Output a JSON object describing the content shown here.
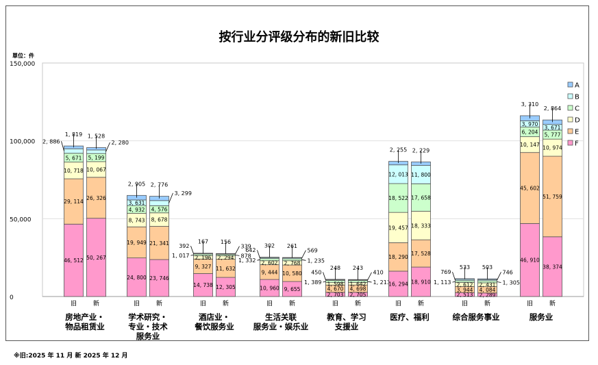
{
  "chart_data": {
    "type": "bar",
    "stacked": true,
    "title": "按行业分评级分布的新旧比较",
    "unit_label": "單位：件",
    "ylabel": "",
    "xlabel": "",
    "ylim": [
      0,
      150000
    ],
    "yticks": [
      "0",
      "50,000",
      "100,000",
      "150,000"
    ],
    "ytick_values": [
      0,
      50000,
      100000,
      150000
    ],
    "grid": true,
    "legend_position": "right",
    "bar_labels": [
      "旧",
      "新"
    ],
    "series_order_bottom_to_top": [
      "F",
      "E",
      "D",
      "C",
      "B",
      "A"
    ],
    "legend": [
      "A",
      "B",
      "C",
      "D",
      "E",
      "F"
    ],
    "colors": {
      "A": "#99CCFF",
      "B": "#CCFFFF",
      "C": "#CCFFCC",
      "D": "#FFFFCC",
      "E": "#FFCC99",
      "F": "#FF99CC"
    },
    "categories": [
      {
        "name": "房地产业・\n物品租赁业",
        "old": {
          "F": 46512,
          "E": 29114,
          "D": 10718,
          "C": 5671,
          "B": 2886,
          "A": 1819
        },
        "new": {
          "F": 50267,
          "E": 26326,
          "D": 10067,
          "C": 5199,
          "B": 2280,
          "A": 1528
        }
      },
      {
        "name": "学术研究・\n专业・技术\n服务业",
        "old": {
          "F": 24800,
          "E": 19949,
          "D": 8743,
          "C": 4932,
          "B": 3631,
          "A": 2905
        },
        "new": {
          "F": 23746,
          "E": 21341,
          "D": 8678,
          "C": 4576,
          "B": 3299,
          "A": 2776
        }
      },
      {
        "name": "酒店业・\n餐饮服务业",
        "old": {
          "F": 14738,
          "E": 9327,
          "D": 2196,
          "C": 1017,
          "B": 392,
          "A": 167
        },
        "new": {
          "F": 12305,
          "E": 11632,
          "D": 2294,
          "C": 878,
          "B": 339,
          "A": 156
        }
      },
      {
        "name": "生活关联\n服务业・娱乐业",
        "old": {
          "F": 10960,
          "E": 9444,
          "D": 2602,
          "C": 1332,
          "B": 642,
          "A": 302
        },
        "new": {
          "F": 9655,
          "E": 10580,
          "D": 2768,
          "C": 1235,
          "B": 569,
          "A": 261
        }
      },
      {
        "name": "教育、学习\n支援业",
        "old": {
          "F": 2703,
          "E": 4670,
          "D": 1598,
          "C": 1389,
          "B": 450,
          "A": 248
        },
        "new": {
          "F": 2705,
          "E": 4698,
          "D": 1642,
          "C": 1213,
          "B": 410,
          "A": 243
        }
      },
      {
        "name": "医疗、福利",
        "old": {
          "F": 16294,
          "E": 18290,
          "D": 19457,
          "C": 18522,
          "B": 12013,
          "A": 2255
        },
        "new": {
          "F": 18910,
          "E": 17528,
          "D": 18333,
          "C": 17658,
          "B": 11800,
          "A": 2229
        }
      },
      {
        "name": "综合服务事业",
        "old": {
          "F": 2513,
          "E": 3944,
          "D": 2612,
          "C": 1113,
          "B": 769,
          "A": 533
        },
        "new": {
          "F": 2289,
          "E": 4084,
          "D": 2431,
          "C": 1305,
          "B": 746,
          "A": 503
        }
      },
      {
        "name": "服务业",
        "old": {
          "F": 46910,
          "E": 45602,
          "D": 10147,
          "C": 6204,
          "B": 3970,
          "A": 3310
        },
        "new": {
          "F": 38374,
          "E": 51759,
          "D": 10974,
          "C": 5777,
          "B": 3671,
          "A": 2864
        }
      }
    ]
  },
  "footnote": "※旧:2025 年 11 月  新 2025 年 12 月"
}
